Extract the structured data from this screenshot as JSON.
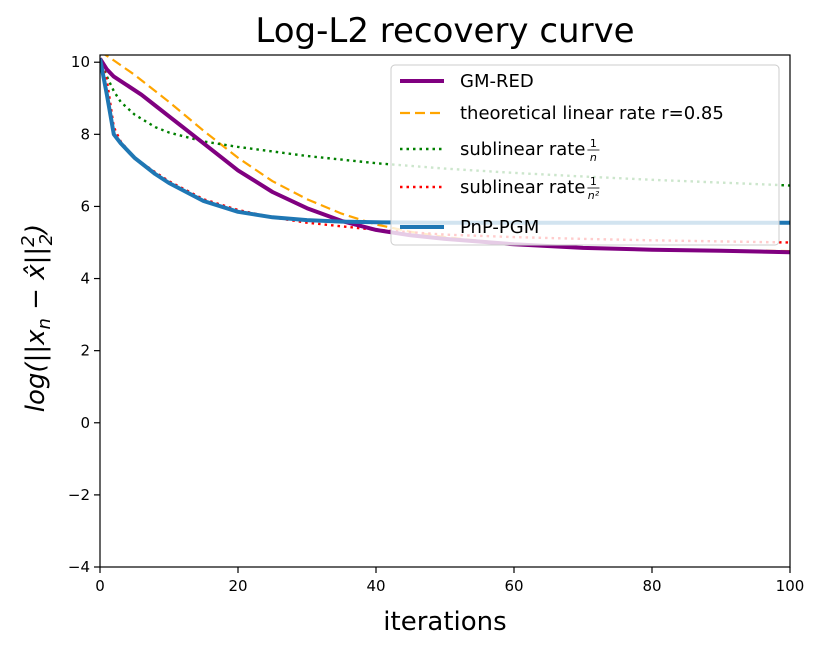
{
  "chart_data": {
    "type": "line",
    "title": "Log-L2 recovery curve",
    "xlabel": "iterations",
    "ylabel": "log(||x_n − x̂||²₂)",
    "xlim": [
      0,
      100
    ],
    "ylim": [
      -4,
      10.2
    ],
    "xticks": [
      0,
      20,
      40,
      60,
      80,
      100
    ],
    "yticks": [
      -4,
      -2,
      0,
      2,
      4,
      6,
      8,
      10
    ],
    "legend_position": "top-right",
    "series": [
      {
        "name": "GM-RED",
        "color": "#800080",
        "style": "solid",
        "width": 4,
        "x": [
          0,
          1,
          2,
          4,
          6,
          8,
          10,
          12,
          15,
          18,
          20,
          25,
          30,
          35,
          40,
          45,
          50,
          60,
          70,
          80,
          90,
          100
        ],
        "y": [
          10.1,
          9.8,
          9.6,
          9.35,
          9.1,
          8.8,
          8.5,
          8.2,
          7.75,
          7.3,
          7.0,
          6.4,
          5.95,
          5.6,
          5.35,
          5.2,
          5.1,
          4.95,
          4.85,
          4.8,
          4.77,
          4.73
        ]
      },
      {
        "name": "theoretical linear rate r=0.85",
        "color": "#FFA500",
        "style": "dashed",
        "width": 2.2,
        "x": [
          0,
          2,
          5,
          10,
          15,
          20,
          25,
          30,
          35,
          40,
          45,
          50,
          60,
          70,
          80,
          90,
          100
        ],
        "y": [
          10.3,
          10.05,
          9.65,
          8.9,
          8.1,
          7.35,
          6.7,
          6.2,
          5.8,
          5.5,
          5.3,
          5.15,
          4.95,
          4.85,
          4.8,
          4.78,
          4.76
        ]
      },
      {
        "name": "sublinear rate 1/n",
        "label_main": "sublinear rate ",
        "label_frac_num": "1",
        "label_frac_den": "n",
        "color": "#008000",
        "style": "dotted",
        "width": 2.4,
        "x": [
          0,
          1,
          2,
          3,
          5,
          8,
          10,
          15,
          20,
          30,
          40,
          50,
          60,
          70,
          80,
          90,
          100
        ],
        "y": [
          10.1,
          9.6,
          9.2,
          8.9,
          8.55,
          8.2,
          8.05,
          7.8,
          7.65,
          7.4,
          7.2,
          7.05,
          6.93,
          6.83,
          6.74,
          6.66,
          6.58
        ]
      },
      {
        "name": "sublinear rate 1/n²",
        "label_main": "sublinear rate ",
        "label_frac_num": "1",
        "label_frac_den": "n²",
        "color": "#FF0000",
        "style": "dotted",
        "width": 2.4,
        "x": [
          0,
          1,
          2,
          3,
          5,
          8,
          10,
          15,
          20,
          25,
          30,
          40,
          50,
          60,
          70,
          80,
          90,
          100
        ],
        "y": [
          10.1,
          9.5,
          8.2,
          7.8,
          7.35,
          6.95,
          6.7,
          6.2,
          5.9,
          5.7,
          5.55,
          5.35,
          5.22,
          5.15,
          5.1,
          5.06,
          5.03,
          5.0
        ]
      },
      {
        "name": "PnP-PGM",
        "color": "#1F77B4",
        "style": "solid",
        "width": 4,
        "x": [
          0,
          1,
          2,
          3,
          5,
          8,
          10,
          15,
          20,
          25,
          30,
          35,
          40,
          50,
          60,
          70,
          80,
          90,
          100
        ],
        "y": [
          10.1,
          9.1,
          8.0,
          7.75,
          7.35,
          6.9,
          6.65,
          6.15,
          5.85,
          5.7,
          5.62,
          5.58,
          5.56,
          5.55,
          5.55,
          5.55,
          5.55,
          5.55,
          5.55
        ]
      }
    ]
  }
}
